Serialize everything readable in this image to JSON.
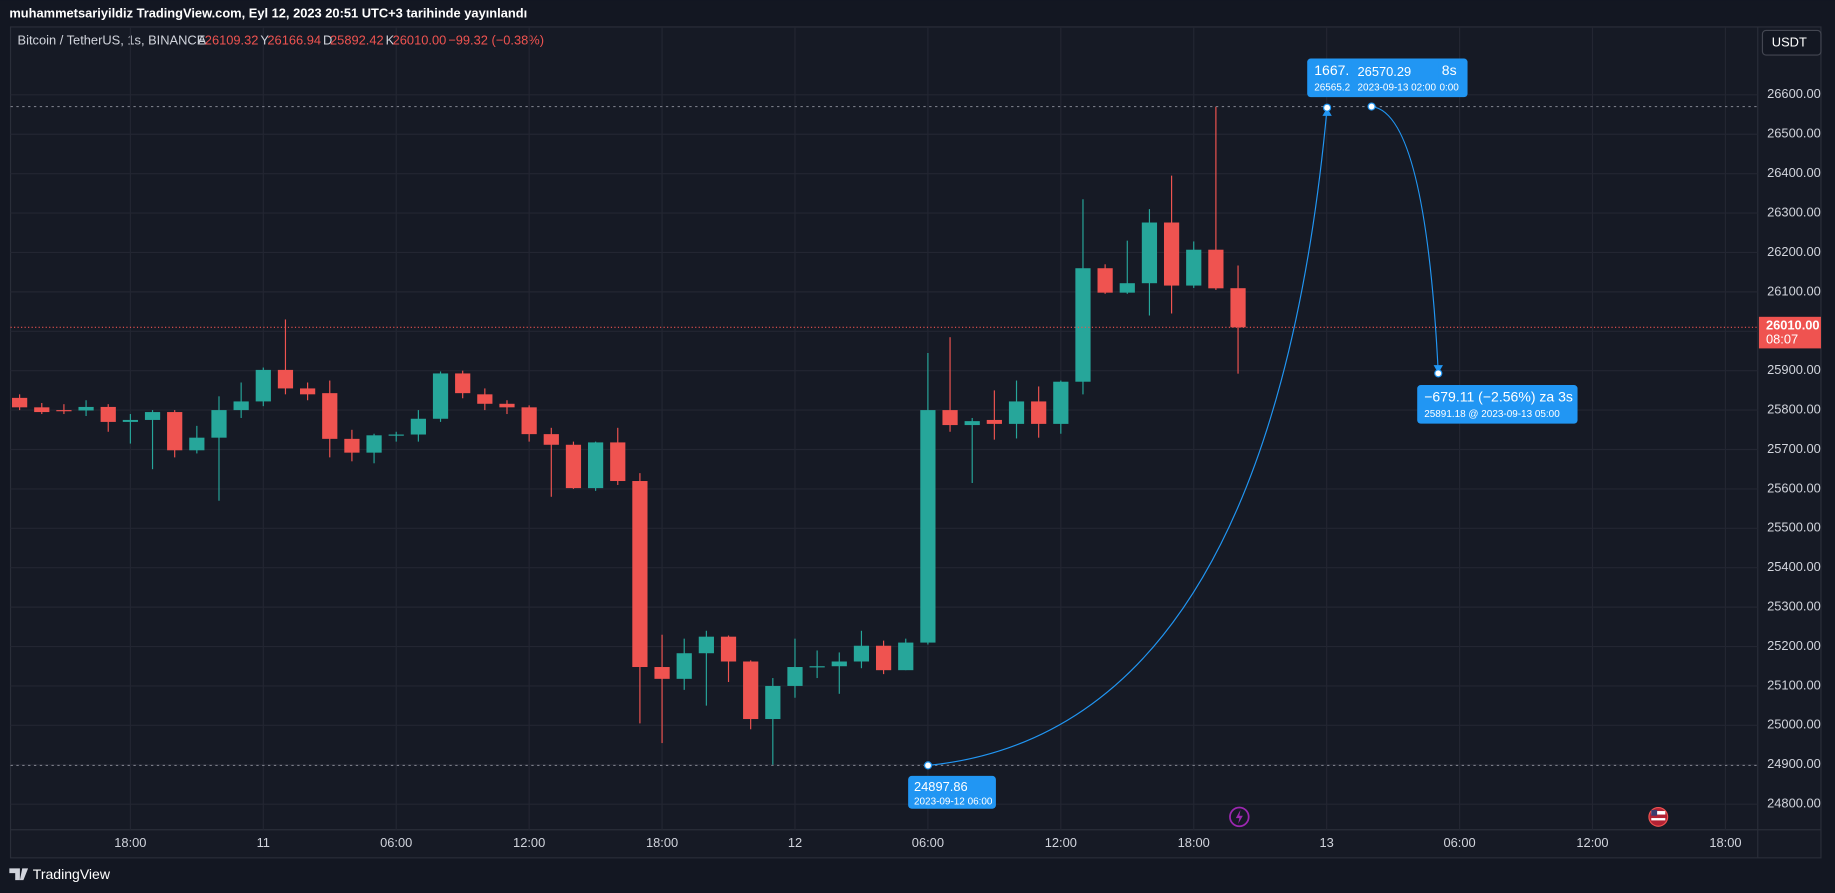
{
  "chart_data": {
    "type": "candlestick",
    "title": "muhammetsariyildiz TradingView.com, Eyl 12, 2023 20:51 UTC+3 tarihinde yayınlandı",
    "symbol": "Bitcoin / TetherUS, 1s, BINANCE",
    "ohlc_legend": [
      {
        "label": "A",
        "value": "26109.32"
      },
      {
        "label": "Y",
        "value": "26166.94"
      },
      {
        "label": "D",
        "value": "25892.42"
      },
      {
        "label": "K",
        "value": "26010.00"
      }
    ],
    "change": "−99.32 (−0.38%)",
    "currency": "USDT",
    "last_price_label": "26010.00",
    "countdown": "08:07",
    "brand": "TradingView",
    "up_color": "#26a69a",
    "down_color": "#ef5350",
    "grid": true,
    "x": [
      13,
      14,
      15,
      16,
      17,
      18,
      19,
      20,
      21,
      22,
      23,
      24,
      25,
      26,
      27,
      28,
      29,
      30,
      31,
      32,
      33,
      34,
      35,
      36,
      37,
      38,
      39,
      40,
      41,
      42,
      43,
      44,
      45,
      46,
      47,
      48,
      49,
      50,
      51,
      52,
      53,
      54,
      55,
      56,
      57,
      58,
      59,
      60,
      61,
      62,
      63,
      64,
      65,
      66,
      67,
      68
    ],
    "open": [
      25831,
      25807,
      25800,
      25799,
      25808,
      25770,
      25775,
      25795,
      25698,
      25730,
      25800,
      25822,
      25902,
      25855,
      25843,
      25727,
      25692,
      25735,
      25738,
      25778,
      25893,
      25840,
      25816,
      25807,
      25739,
      25712,
      25602,
      25718,
      25620,
      25148,
      25118,
      25183,
      25225,
      25162,
      25016,
      25100,
      25148,
      25150,
      25162,
      25202,
      25140,
      25210,
      25800,
      25762,
      25775,
      25765,
      25822,
      25765,
      25872,
      26160,
      26098,
      26122,
      26276,
      26116,
      26207,
      26109.32
    ],
    "high": [
      25840,
      25818,
      25815,
      25825,
      25815,
      25790,
      25800,
      25800,
      25760,
      25835,
      25870,
      25908,
      26030,
      25870,
      25875,
      25750,
      25740,
      25745,
      25800,
      25898,
      25900,
      25855,
      25825,
      25812,
      25755,
      25720,
      25720,
      25755,
      25640,
      25230,
      25220,
      25240,
      25228,
      25165,
      25120,
      25220,
      25190,
      25185,
      25240,
      25215,
      25220,
      25945,
      25985,
      25780,
      25850,
      25875,
      25860,
      25875,
      26335,
      26170,
      26230,
      26310,
      26395,
      26228,
      26570,
      26166.94
    ],
    "low": [
      25800,
      25790,
      25790,
      25785,
      25745,
      25715,
      25650,
      25680,
      25690,
      25570,
      25780,
      25810,
      25840,
      25825,
      25680,
      25670,
      25665,
      25720,
      25720,
      25770,
      25830,
      25800,
      25790,
      25720,
      25580,
      25600,
      25595,
      25610,
      25005,
      24955,
      25090,
      25050,
      25110,
      24990,
      24900,
      25070,
      25120,
      25080,
      25145,
      25130,
      25140,
      25205,
      25745,
      25615,
      25725,
      25728,
      25730,
      25740,
      25840,
      26095,
      26095,
      26040,
      26045,
      26110,
      26105,
      25892.42
    ],
    "close": [
      25807,
      25795,
      25798,
      25808,
      25770,
      25775,
      25795,
      25698,
      25730,
      25800,
      25822,
      25902,
      25855,
      25840,
      25727,
      25692,
      25736,
      25738,
      25778,
      25893,
      25843,
      25816,
      25807,
      25739,
      25712,
      25602,
      25718,
      25620,
      25148,
      25118,
      25183,
      25225,
      25162,
      25016,
      25100,
      25148,
      25150,
      25162,
      25202,
      25140,
      25210,
      25800,
      25762,
      25772,
      25765,
      25822,
      25765,
      25872,
      26160,
      26098,
      26122,
      26276,
      26116,
      26207,
      26109,
      26010.0
    ],
    "xlim": [
      12.59,
      91.46
    ],
    "xticks": [
      {
        "value": 18,
        "label": "18:00"
      },
      {
        "value": 24,
        "label": "11"
      },
      {
        "value": 30,
        "label": "06:00"
      },
      {
        "value": 36,
        "label": "12:00"
      },
      {
        "value": 42,
        "label": "18:00"
      },
      {
        "value": 48,
        "label": "12"
      },
      {
        "value": 54,
        "label": "06:00"
      },
      {
        "value": 60,
        "label": "12:00"
      },
      {
        "value": 66,
        "label": "18:00"
      },
      {
        "value": 72,
        "label": "13"
      },
      {
        "value": 78,
        "label": "06:00"
      },
      {
        "value": 84,
        "label": "12:00"
      },
      {
        "value": 90,
        "label": "18:00"
      }
    ],
    "ylim": [
      24735,
      26701
    ],
    "yticks": [
      {
        "value": 24800,
        "label": "24800.00"
      },
      {
        "value": 24900,
        "label": "24900.00"
      },
      {
        "value": 25000,
        "label": "25000.00"
      },
      {
        "value": 25100,
        "label": "25100.00"
      },
      {
        "value": 25200,
        "label": "25200.00"
      },
      {
        "value": 25300,
        "label": "25300.00"
      },
      {
        "value": 25400,
        "label": "25400.00"
      },
      {
        "value": 25500,
        "label": "25500.00"
      },
      {
        "value": 25600,
        "label": "25600.00"
      },
      {
        "value": 25700,
        "label": "25700.00"
      },
      {
        "value": 25800,
        "label": "25800.00"
      },
      {
        "value": 25900,
        "label": "25900.00"
      },
      {
        "value": 26000,
        "label": "26000.00"
      },
      {
        "value": 26100,
        "label": "26100.00"
      },
      {
        "value": 26200,
        "label": "26200.00"
      },
      {
        "value": 26300,
        "label": "26300.00"
      },
      {
        "value": 26400,
        "label": "26400.00"
      },
      {
        "value": 26500,
        "label": "26500.00"
      },
      {
        "value": 26600,
        "label": "26600.00"
      }
    ],
    "annotations": {
      "rise_partial": "1667.",
      "rise_partial_price": "26565.2",
      "rise_partial_tail": "8s",
      "rise_partial_time": "0:00",
      "peak_price": "26570.29",
      "peak_time": "2023-09-13 02:00",
      "fall": "−679.11 (−2.56%) za 3s",
      "fall_detail": "25891.18 @ 2023-09-13  05:00",
      "low_price": "24897.86",
      "low_time": "2023-09-12 06:00"
    }
  }
}
